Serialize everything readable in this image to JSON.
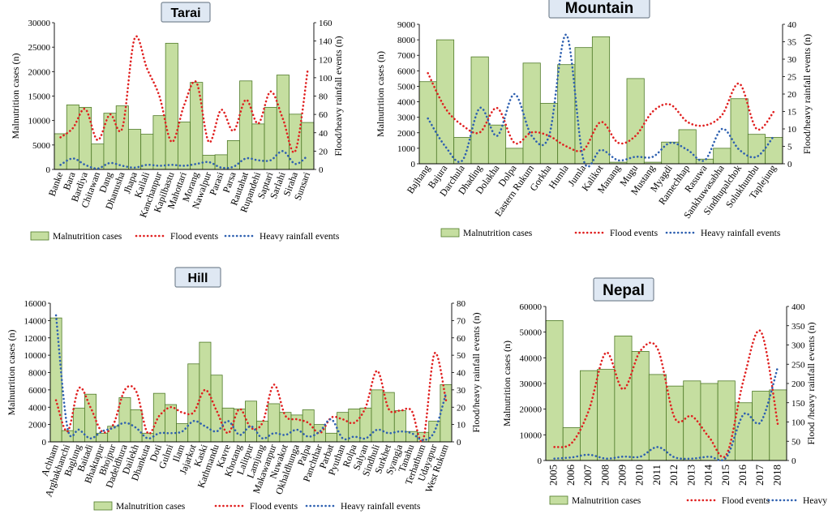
{
  "figure": {
    "background": "#ffffff"
  },
  "styles": {
    "bar_fill": "#c5dea0",
    "bar_stroke": "#4f7a28",
    "flood_color": "#e02020",
    "rain_color": "#2e60b0",
    "title_box_fill": "#dfe8f3"
  },
  "legend_labels": {
    "malnutrition": "Malnutrition cases",
    "flood": "Flood events",
    "rain": "Heavy rainfall events"
  },
  "chart_data": [
    {
      "id": "tarai",
      "title": "Tarai",
      "type": "bar+line",
      "ylabel": "Malnutrition cases (n)",
      "y2label": "Flood/heavy rainfall events (n)",
      "ylim": [
        0,
        30000
      ],
      "yticks": [
        "0",
        "5000",
        "10000",
        "15000",
        "20000",
        "25000",
        "30000"
      ],
      "y2lim": [
        0,
        160
      ],
      "y2ticks": [
        "0",
        "20",
        "40",
        "60",
        "80",
        "100",
        "120",
        "140",
        "160"
      ],
      "categories": [
        "Banke",
        "Bara",
        "Bardiya",
        "Chitawan",
        "Dang",
        "Dhanusha",
        "Jhapa",
        "Kailali",
        "Kanchanpur",
        "Kapilbastu",
        "Mahottari",
        "Morang",
        "Nawalpur",
        "Parasi",
        "Parsa",
        "Rautahat",
        "Rupandehi",
        "Saptari",
        "Sarlahi",
        "Siraha",
        "Sunsari"
      ],
      "series": [
        {
          "name": "Malnutrition cases",
          "kind": "bar",
          "values": [
            7300,
            13200,
            12700,
            5200,
            11500,
            13000,
            8200,
            7200,
            11000,
            25800,
            9700,
            17800,
            2900,
            3000,
            5900,
            18100,
            9300,
            12700,
            19300,
            11300,
            9600
          ]
        },
        {
          "name": "Flood events",
          "kind": "line",
          "values": [
            35,
            45,
            66,
            32,
            60,
            45,
            143,
            110,
            80,
            30,
            70,
            95,
            30,
            65,
            42,
            76,
            50,
            85,
            55,
            20,
            108
          ]
        },
        {
          "name": "Heavy rainfall events",
          "kind": "line",
          "values": [
            5,
            12,
            5,
            1,
            7,
            4,
            2,
            5,
            4,
            5,
            4,
            6,
            8,
            2,
            3,
            12,
            10,
            10,
            20,
            6,
            15
          ]
        }
      ]
    },
    {
      "id": "mountain",
      "title": "Mountain",
      "type": "bar+line",
      "ylabel": "Malnutrition cases (n)",
      "y2label": "Flood/heavy rainfall events (n)",
      "ylim": [
        0,
        9000
      ],
      "yticks": [
        "0",
        "1000",
        "2000",
        "3000",
        "4000",
        "5000",
        "6000",
        "7000",
        "8000",
        "9000"
      ],
      "y2lim": [
        0,
        40
      ],
      "y2ticks": [
        "0",
        "5",
        "10",
        "15",
        "20",
        "25",
        "30",
        "35",
        "40"
      ],
      "categories": [
        "Bajhang",
        "Bajura",
        "Darchula",
        "Dhading",
        "Dolakha",
        "Dolpa",
        "Eastern Rukum",
        "Gorkha",
        "Humla",
        "Jumla",
        "Kalikot",
        "Manang",
        "Mugu",
        "Mustang",
        "Myagdi",
        "Ramechhap",
        "Rasuwa",
        "Sankhuwasabha",
        "Sindhupalchok",
        "Solukhumbu",
        "Taplejung"
      ],
      "series": [
        {
          "name": "Malnutrition cases",
          "kind": "bar",
          "values": [
            5300,
            8000,
            1700,
            6900,
            2500,
            1000,
            6500,
            3900,
            6400,
            7500,
            8200,
            100,
            5500,
            100,
            1400,
            2200,
            300,
            1000,
            4200,
            1900,
            1700
          ]
        },
        {
          "name": "Flood events",
          "kind": "line",
          "values": [
            26,
            16,
            11,
            9,
            16,
            6,
            9,
            8,
            5,
            4,
            12,
            6,
            8,
            15,
            17,
            12,
            11,
            14,
            23,
            10,
            15
          ]
        },
        {
          "name": "Heavy rainfall events",
          "kind": "line",
          "values": [
            13,
            5,
            1,
            16,
            8,
            20,
            8,
            8,
            37,
            1,
            4,
            1,
            2,
            2,
            6,
            4,
            1,
            10,
            4,
            2,
            8
          ]
        }
      ]
    },
    {
      "id": "hill",
      "title": "Hill",
      "type": "bar+line",
      "ylabel": "Malnutrition cases (n)",
      "y2label": "Flood/heavy rainfall events (n)",
      "ylim": [
        0,
        16000
      ],
      "yticks": [
        "0",
        "2000",
        "4000",
        "6000",
        "8000",
        "10000",
        "12000",
        "14000",
        "16000"
      ],
      "y2lim": [
        0,
        80
      ],
      "y2ticks": [
        "0",
        "10",
        "20",
        "30",
        "40",
        "50",
        "60",
        "70",
        "80"
      ],
      "categories": [
        "Achham",
        "Arghakhanchi",
        "Baglung",
        "Baitadi",
        "Bhaktapur",
        "Bhojpur",
        "Dadeldhura",
        "Dailekh",
        "Dhankuta",
        "Doti",
        "Gulmi",
        "Ilam",
        "Jajarkot",
        "Kaski",
        "Kathmandu",
        "Kavre",
        "Khotang",
        "Lalitpur",
        "Lamjung",
        "Makawanpur",
        "Nuwakot",
        "Okhaldhunga",
        "Palpa",
        "Panchthar",
        "Parbat",
        "Pyuthan",
        "Rolpa",
        "Salyan",
        "Sindhuli",
        "Surkhet",
        "Syangja",
        "Tanahu",
        "Terhathum",
        "Udayapur",
        "West Rukum"
      ],
      "series": [
        {
          "name": "Malnutrition cases",
          "kind": "bar",
          "values": [
            14300,
            1300,
            3900,
            5500,
            1000,
            1800,
            5100,
            3700,
            1000,
            5600,
            4300,
            2100,
            9000,
            11500,
            7700,
            3900,
            3800,
            4700,
            2400,
            4400,
            3400,
            3100,
            3700,
            2000,
            1000,
            3400,
            3800,
            3900,
            6000,
            5700,
            3600,
            1200,
            1100,
            2400,
            6600
          ]
        },
        {
          "name": "Flood events",
          "kind": "line",
          "values": [
            24,
            6,
            31,
            20,
            6,
            10,
            30,
            29,
            5,
            15,
            20,
            17,
            17,
            30,
            18,
            5,
            19,
            8,
            11,
            33,
            15,
            13,
            11,
            5,
            14,
            13,
            11,
            20,
            41,
            19,
            18,
            18,
            1,
            51,
            24
          ]
        },
        {
          "name": "Heavy rainfall events",
          "kind": "line",
          "values": [
            73,
            8,
            7,
            2,
            6,
            8,
            11,
            8,
            2,
            5,
            5,
            6,
            12,
            9,
            6,
            12,
            4,
            9,
            2,
            5,
            4,
            7,
            3,
            6,
            13,
            2,
            3,
            2,
            7,
            5,
            6,
            5,
            1,
            6,
            28
          ]
        }
      ]
    },
    {
      "id": "nepal",
      "title": "Nepal",
      "type": "bar+line",
      "ylabel": "Malnutrition cases (n)",
      "y2label": "Flood /heavy rainfall events (n)",
      "ylim": [
        0,
        60000
      ],
      "yticks": [
        "0",
        "10000",
        "20000",
        "30000",
        "40000",
        "50000",
        "60000"
      ],
      "y2lim": [
        0,
        400
      ],
      "y2ticks": [
        "0",
        "50",
        "100",
        "150",
        "200",
        "250",
        "300",
        "350",
        "400"
      ],
      "categories": [
        "2005",
        "2006",
        "2007",
        "2008",
        "2009",
        "2010",
        "2011",
        "2012",
        "2013",
        "2014",
        "2015",
        "2016",
        "2017",
        "2018"
      ],
      "series": [
        {
          "name": "Malnutrition cases",
          "kind": "bar",
          "values": [
            54500,
            12800,
            35000,
            35500,
            48500,
            42500,
            33500,
            29000,
            31000,
            30000,
            31000,
            22500,
            27000,
            27500
          ]
        },
        {
          "name": "Flood events",
          "kind": "line",
          "values": [
            35,
            45,
            130,
            280,
            185,
            285,
            290,
            110,
            115,
            60,
            15,
            210,
            335,
            90
          ]
        },
        {
          "name": "Heavy rainfall events",
          "kind": "line",
          "values": [
            5,
            8,
            15,
            5,
            10,
            10,
            35,
            8,
            5,
            10,
            8,
            120,
            100,
            245
          ]
        }
      ]
    }
  ]
}
